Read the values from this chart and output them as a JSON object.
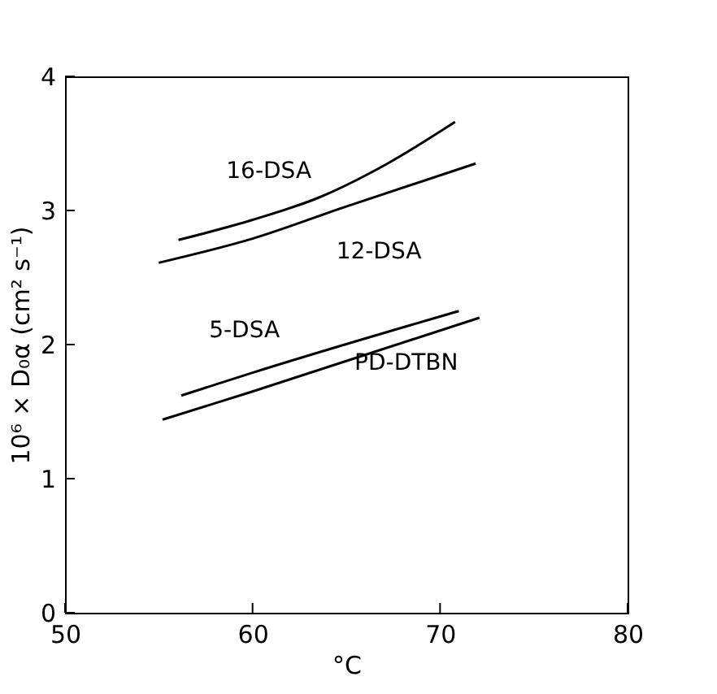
{
  "chart_data": {
    "type": "line",
    "xlabel": "°C",
    "ylabel": "10⁶ × D₀α (cm² s⁻¹)",
    "xlim": [
      50,
      80
    ],
    "xticks": [
      50,
      60,
      70,
      80
    ],
    "ylim": [
      0,
      4
    ],
    "yticks": [
      0,
      1,
      2,
      3,
      4
    ],
    "grid": false,
    "marker": "none",
    "line_style": "solid",
    "series": [
      {
        "name": "16-DSA",
        "color": "#000000",
        "x": [
          56.05,
          60,
          63.6,
          67.2,
          70.8
        ],
        "values": [
          2.78,
          2.93,
          3.1,
          3.35,
          3.66
        ]
      },
      {
        "name": "12-DSA",
        "color": "#000000",
        "x": [
          55.0,
          60,
          65,
          71.9
        ],
        "values": [
          2.61,
          2.79,
          3.03,
          3.35
        ]
      },
      {
        "name": "5-DSA",
        "color": "#000000",
        "x": [
          56.2,
          60,
          71.0
        ],
        "values": [
          1.62,
          1.79,
          2.25
        ]
      },
      {
        "name": "PD-DTBN",
        "color": "#000000",
        "x": [
          55.2,
          60,
          72.1
        ],
        "values": [
          1.44,
          1.65,
          2.2
        ]
      }
    ]
  }
}
